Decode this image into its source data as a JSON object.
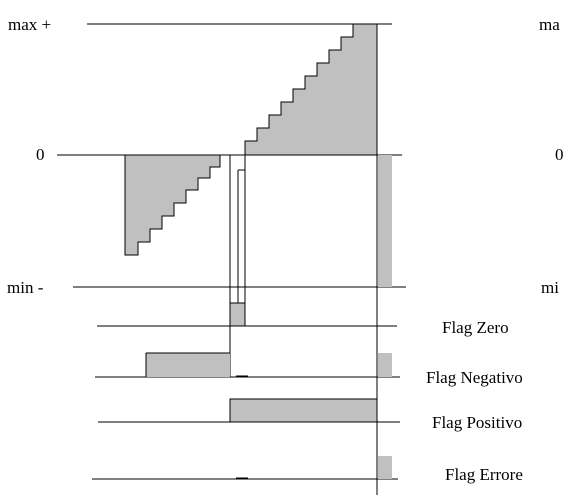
{
  "labels": {
    "max": "max +",
    "zero": "0",
    "min": "min -",
    "right_max_clipped": "ma",
    "right_zero_clipped": "0",
    "right_min_clipped": "mi"
  },
  "flags": [
    {
      "key": "zero",
      "label": "Flag Zero"
    },
    {
      "key": "negative",
      "label": "Flag Negativo"
    },
    {
      "key": "positive",
      "label": "Flag Positivo"
    },
    {
      "key": "error",
      "label": "Flag Errore"
    }
  ],
  "colors": {
    "fill": "#c0c0c0",
    "stroke": "#000000",
    "background": "#ffffff"
  }
}
